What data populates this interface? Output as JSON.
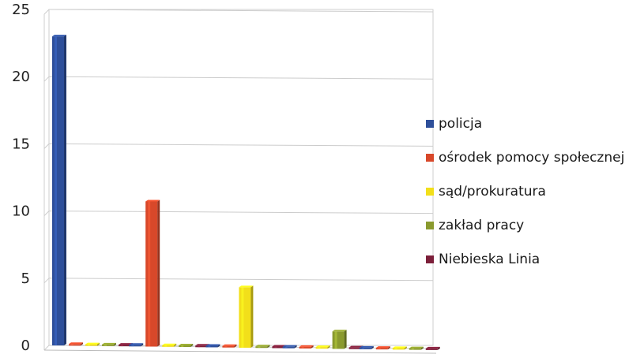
{
  "chart_data": {
    "type": "bar",
    "title": "",
    "xlabel": "",
    "ylabel": "",
    "ylim": [
      0,
      25
    ],
    "yticks": [
      "0",
      "5",
      "10",
      "15",
      "20",
      "25"
    ],
    "grid": true,
    "legend_position": "right",
    "series": [
      {
        "name": "policja",
        "color": "#2e4f9a",
        "values": [
          23,
          0,
          0,
          0,
          0
        ]
      },
      {
        "name": "ośrodek pomocy społecznej",
        "color": "#d8482a",
        "values": [
          0,
          10.8,
          0,
          0,
          0
        ]
      },
      {
        "name": "sąd/prokuratura",
        "color": "#f2df1a",
        "values": [
          0,
          0,
          4.5,
          0,
          0
        ]
      },
      {
        "name": "zakład pracy",
        "color": "#8a9a2e",
        "values": [
          0,
          0,
          0,
          1.3,
          0
        ]
      },
      {
        "name": "Niebieska Linia",
        "color": "#7c1f3a",
        "values": [
          0,
          0,
          0,
          0,
          0.1
        ]
      }
    ]
  }
}
